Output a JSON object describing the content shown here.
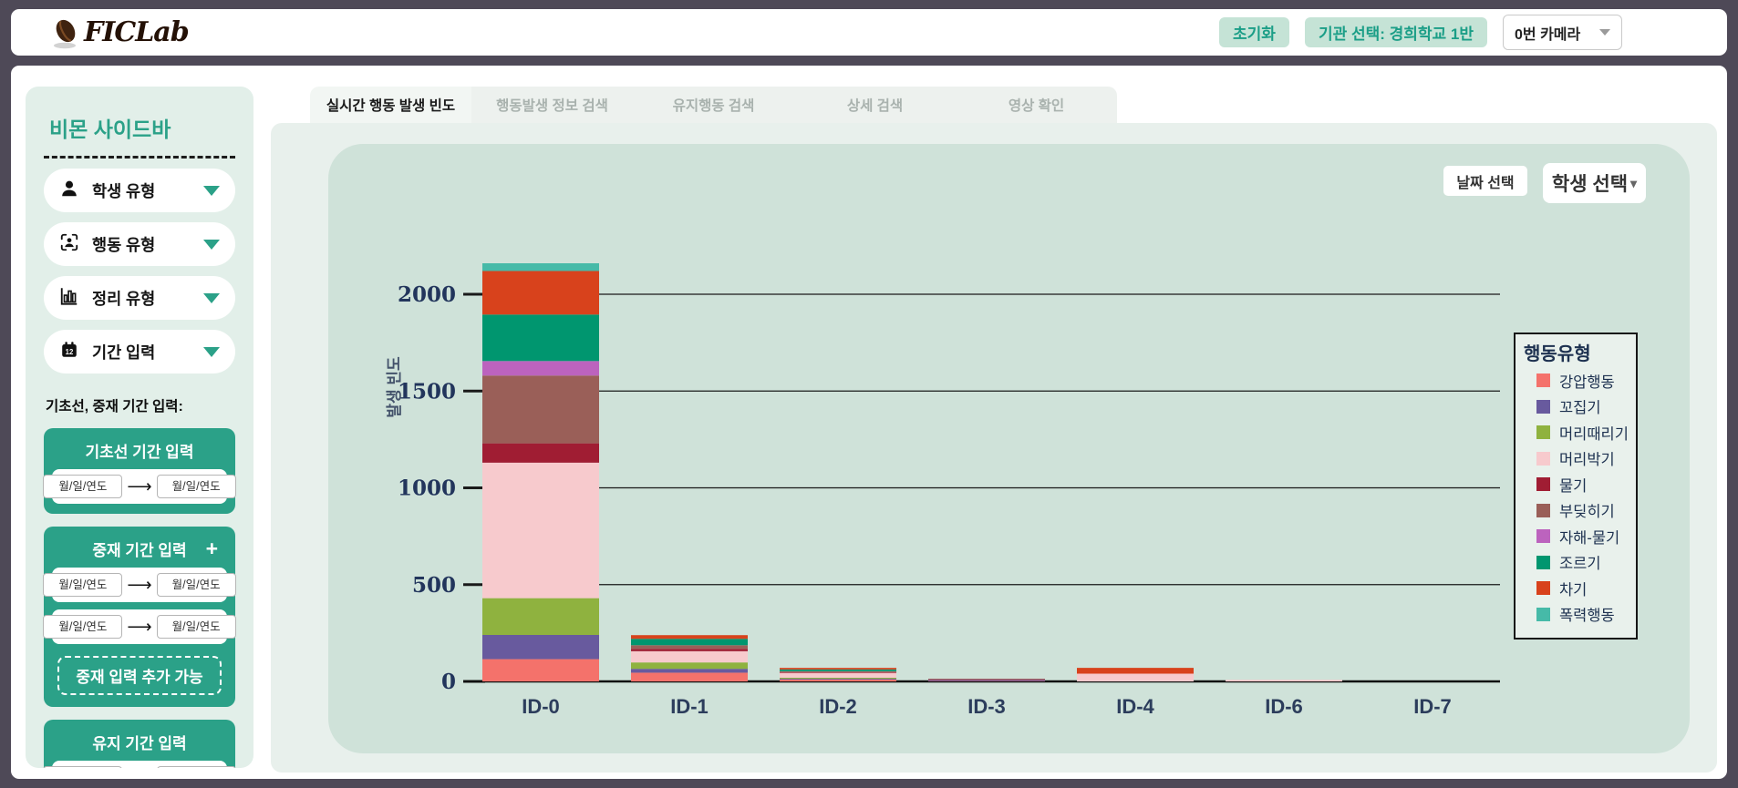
{
  "header": {
    "logo_text": "FICLab",
    "reset_button": "초기화",
    "org_button": "기관 선택: 경희학교 1반",
    "camera_select": "0번 카메라"
  },
  "sidebar": {
    "title": "비몬 사이드바",
    "menus": [
      {
        "label": "학생 유형",
        "icon": "person-icon"
      },
      {
        "label": "행동 유형",
        "icon": "face-scan-icon"
      },
      {
        "label": "정리 유형",
        "icon": "bar-chart-icon"
      },
      {
        "label": "기간 입력",
        "icon": "calendar-icon"
      }
    ],
    "period_caption": "기초선, 중재 기간 입력:",
    "date_placeholder": "월/일/연도",
    "baseline_card": {
      "title": "기초선 기간 입력"
    },
    "intervention_card": {
      "title": "중재 기간 입력",
      "add_icon": "+",
      "add_button": "중재 입력 추가 가능"
    },
    "maintain_card": {
      "title": "유지 기간 입력"
    }
  },
  "tabs": [
    {
      "label": "실시간 행동 발생 빈도",
      "active": true
    },
    {
      "label": "행동발생 정보 검색",
      "active": false
    },
    {
      "label": "유지행동 검색",
      "active": false
    },
    {
      "label": "상세 검색",
      "active": false
    },
    {
      "label": "영상 확인",
      "active": false
    }
  ],
  "chart_controls": {
    "date_button": "날짜 선택",
    "student_button": "학생 선택"
  },
  "chart_data": {
    "type": "bar",
    "stacked": true,
    "ylabel": "발생 빈도",
    "legend_title": "행동유형",
    "legend_position": "right",
    "grid": true,
    "categories": [
      "ID-0",
      "ID-1",
      "ID-2",
      "ID-3",
      "ID-4",
      "ID-6",
      "ID-7"
    ],
    "yticks": [
      0,
      500,
      1000,
      1500,
      2000
    ],
    "ylim": [
      0,
      2250
    ],
    "series": [
      {
        "name": "강압행동",
        "color": "#F4726B",
        "values": [
          115,
          45,
          10,
          2,
          0,
          0,
          0
        ]
      },
      {
        "name": "꼬집기",
        "color": "#685A9E",
        "values": [
          125,
          20,
          4,
          6,
          0,
          0,
          0
        ]
      },
      {
        "name": "머리때리기",
        "color": "#8FB23F",
        "values": [
          190,
          33,
          5,
          0,
          0,
          0,
          0
        ]
      },
      {
        "name": "머리박기",
        "color": "#F7CACD",
        "values": [
          700,
          58,
          25,
          0,
          40,
          8,
          0
        ]
      },
      {
        "name": "물기",
        "color": "#A01D33",
        "values": [
          100,
          12,
          4,
          3,
          0,
          0,
          0
        ]
      },
      {
        "name": "부딪히기",
        "color": "#9A5F58",
        "values": [
          350,
          19,
          5,
          3,
          0,
          0,
          0
        ]
      },
      {
        "name": "자해-물기",
        "color": "#BC63BE",
        "values": [
          75,
          0,
          0,
          0,
          0,
          0,
          0
        ]
      },
      {
        "name": "조르기",
        "color": "#00966F",
        "values": [
          240,
          33,
          9,
          0,
          0,
          0,
          0
        ]
      },
      {
        "name": "차기",
        "color": "#D8421C",
        "values": [
          225,
          19,
          8,
          0,
          30,
          0,
          0
        ]
      },
      {
        "name": "폭력행동",
        "color": "#46BAA8",
        "values": [
          40,
          0,
          0,
          0,
          0,
          0,
          0
        ]
      }
    ]
  }
}
